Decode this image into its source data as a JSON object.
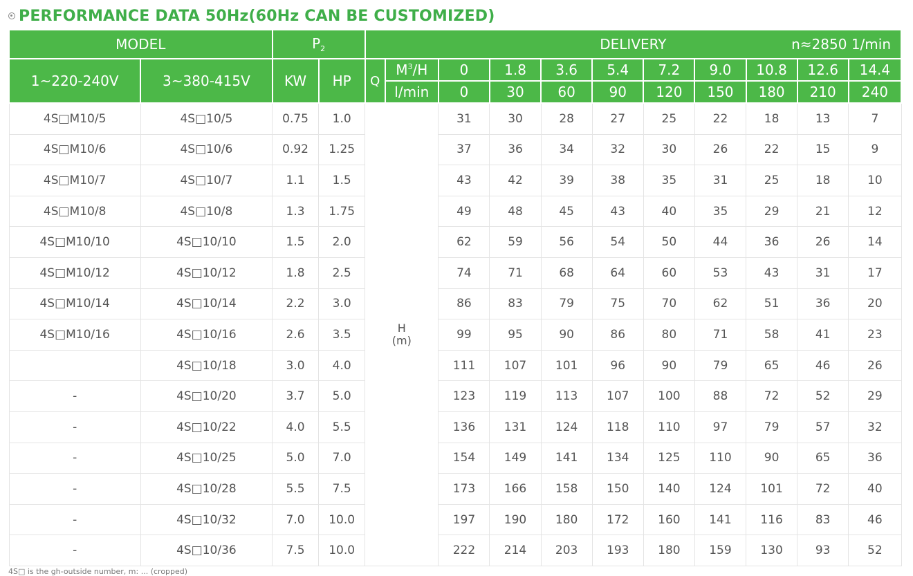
{
  "title": "PERFORMANCE DATA 50Hz(60Hz CAN BE CUSTOMIZED)",
  "colors": {
    "header_bg": "#4cb848",
    "title": "#3fae49",
    "grid": "#e4e4e4"
  },
  "header": {
    "model": "MODEL",
    "p2_letter": "P",
    "p2_sub": "2",
    "delivery": "DELIVERY",
    "speed": "n≈2850 1/min",
    "v1": "1~220-240V",
    "v3": "3~380-415V",
    "kw": "KW",
    "hp": "HP",
    "q": "Q",
    "m3h_unit": "M",
    "m3h_sup": "3",
    "m3h_suffix": "/H",
    "lmin": "l/min",
    "m3h_values": [
      "0",
      "1.8",
      "3.6",
      "5.4",
      "7.2",
      "9.0",
      "10.8",
      "12.6",
      "14.4"
    ],
    "lmin_values": [
      "0",
      "30",
      "60",
      "90",
      "120",
      "150",
      "180",
      "210",
      "240"
    ],
    "head_label": "H",
    "head_unit": "(m)"
  },
  "rows": [
    {
      "m1": "4S□M10/5",
      "m3": "4S□10/5",
      "kw": "0.75",
      "hp": "1.0",
      "h": [
        "31",
        "30",
        "28",
        "27",
        "25",
        "22",
        "18",
        "13",
        "7"
      ]
    },
    {
      "m1": "4S□M10/6",
      "m3": "4S□10/6",
      "kw": "0.92",
      "hp": "1.25",
      "h": [
        "37",
        "36",
        "34",
        "32",
        "30",
        "26",
        "22",
        "15",
        "9"
      ]
    },
    {
      "m1": "4S□M10/7",
      "m3": "4S□10/7",
      "kw": "1.1",
      "hp": "1.5",
      "h": [
        "43",
        "42",
        "39",
        "38",
        "35",
        "31",
        "25",
        "18",
        "10"
      ]
    },
    {
      "m1": "4S□M10/8",
      "m3": "4S□10/8",
      "kw": "1.3",
      "hp": "1.75",
      "h": [
        "49",
        "48",
        "45",
        "43",
        "40",
        "35",
        "29",
        "21",
        "12"
      ]
    },
    {
      "m1": "4S□M10/10",
      "m3": "4S□10/10",
      "kw": "1.5",
      "hp": "2.0",
      "h": [
        "62",
        "59",
        "56",
        "54",
        "50",
        "44",
        "36",
        "26",
        "14"
      ]
    },
    {
      "m1": "4S□M10/12",
      "m3": "4S□10/12",
      "kw": "1.8",
      "hp": "2.5",
      "h": [
        "74",
        "71",
        "68",
        "64",
        "60",
        "53",
        "43",
        "31",
        "17"
      ]
    },
    {
      "m1": "4S□M10/14",
      "m3": "4S□10/14",
      "kw": "2.2",
      "hp": "3.0",
      "h": [
        "86",
        "83",
        "79",
        "75",
        "70",
        "62",
        "51",
        "36",
        "20"
      ]
    },
    {
      "m1": "4S□M10/16",
      "m3": "4S□10/16",
      "kw": "2.6",
      "hp": "3.5",
      "h": [
        "99",
        "95",
        "90",
        "86",
        "80",
        "71",
        "58",
        "41",
        "23"
      ]
    },
    {
      "m1": "",
      "m3": "4S□10/18",
      "kw": "3.0",
      "hp": "4.0",
      "h": [
        "111",
        "107",
        "101",
        "96",
        "90",
        "79",
        "65",
        "46",
        "26"
      ]
    },
    {
      "m1": "-",
      "m3": "4S□10/20",
      "kw": "3.7",
      "hp": "5.0",
      "h": [
        "123",
        "119",
        "113",
        "107",
        "100",
        "88",
        "72",
        "52",
        "29"
      ]
    },
    {
      "m1": "-",
      "m3": "4S□10/22",
      "kw": "4.0",
      "hp": "5.5",
      "h": [
        "136",
        "131",
        "124",
        "118",
        "110",
        "97",
        "79",
        "57",
        "32"
      ]
    },
    {
      "m1": "-",
      "m3": "4S□10/25",
      "kw": "5.0",
      "hp": "7.0",
      "h": [
        "154",
        "149",
        "141",
        "134",
        "125",
        "110",
        "90",
        "65",
        "36"
      ]
    },
    {
      "m1": "-",
      "m3": "4S□10/28",
      "kw": "5.5",
      "hp": "7.5",
      "h": [
        "173",
        "166",
        "158",
        "150",
        "140",
        "124",
        "101",
        "72",
        "40"
      ]
    },
    {
      "m1": "-",
      "m3": "4S□10/32",
      "kw": "7.0",
      "hp": "10.0",
      "h": [
        "197",
        "190",
        "180",
        "172",
        "160",
        "141",
        "116",
        "83",
        "46"
      ]
    },
    {
      "m1": "-",
      "m3": "4S□10/36",
      "kw": "7.5",
      "hp": "10.0",
      "h": [
        "222",
        "214",
        "203",
        "193",
        "180",
        "159",
        "130",
        "93",
        "52"
      ]
    }
  ],
  "footnote": "4S□ is the gh-outside number, m: ... (cropped)"
}
